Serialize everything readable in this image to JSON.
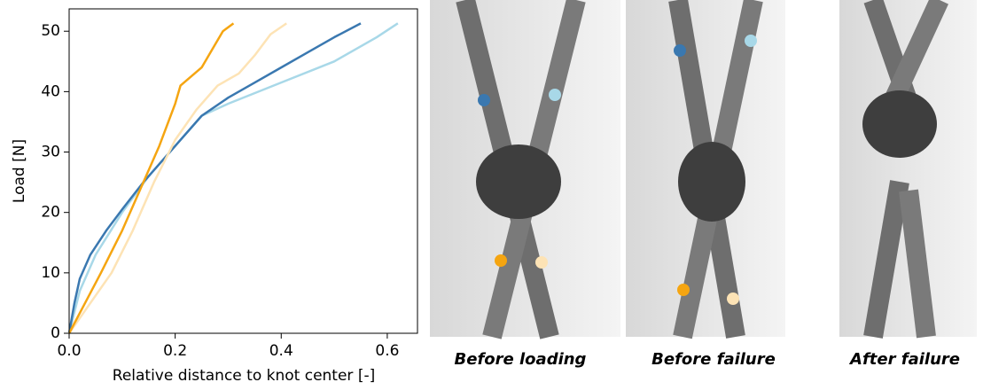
{
  "chart_data": {
    "type": "line",
    "x_label": "Relative distance to knot center [-]",
    "y_label": "Load [N]",
    "xlim": [
      0,
      0.657
    ],
    "ylim": [
      0,
      53.7
    ],
    "xticks": [
      {
        "value": 0,
        "label": "0.0"
      },
      0.2,
      0.4,
      0.6
    ],
    "yticks": [
      0,
      10,
      20,
      30,
      40,
      50
    ],
    "series": [
      {
        "color": "#a8d8e8",
        "x": [
          0,
          0.02,
          0.05,
          0.1,
          0.15,
          0.2,
          0.25,
          0.3,
          0.4,
          0.5,
          0.58,
          0.62
        ],
        "values": [
          0,
          7,
          13,
          20,
          26,
          31,
          36,
          38,
          41.5,
          45,
          49,
          51.3
        ]
      },
      {
        "color": "#3a78b0",
        "x": [
          0,
          0.01,
          0.02,
          0.04,
          0.07,
          0.1,
          0.14,
          0.2,
          0.25,
          0.3,
          0.35,
          0.4,
          0.45,
          0.5,
          0.55
        ],
        "values": [
          0,
          5,
          9,
          13,
          17,
          20.5,
          25,
          31,
          36,
          39,
          41.5,
          44,
          46.5,
          49,
          51.3
        ]
      },
      {
        "color": "#fde3b5",
        "x": [
          0,
          0.04,
          0.08,
          0.12,
          0.16,
          0.2,
          0.24,
          0.28,
          0.32,
          0.35,
          0.38,
          0.41
        ],
        "values": [
          0,
          5,
          10,
          17,
          25,
          32,
          37,
          41,
          43,
          46,
          49.5,
          51.3
        ]
      },
      {
        "color": "#f5a511",
        "x": [
          0,
          0.03,
          0.06,
          0.1,
          0.14,
          0.17,
          0.2,
          0.21,
          0.23,
          0.25,
          0.27,
          0.29,
          0.31
        ],
        "values": [
          0,
          5,
          10,
          17,
          25,
          31,
          38,
          41,
          42.5,
          44,
          47,
          50,
          51.3
        ]
      }
    ]
  },
  "images": [
    {
      "caption": "Before loading"
    },
    {
      "caption": "Before failure"
    },
    {
      "caption": "After failure"
    }
  ]
}
